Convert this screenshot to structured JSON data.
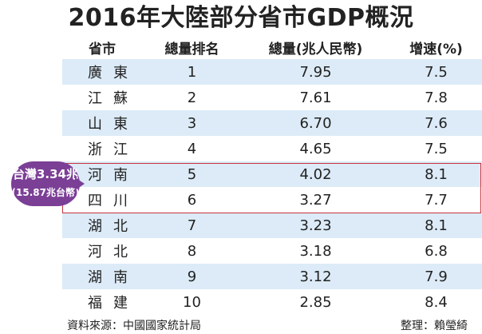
{
  "title": "2016年大陸部分省市GDP概況",
  "callout": {
    "line1": "台灣3.34兆",
    "line2": "(15.87兆台幣)",
    "color": "#7b3f96"
  },
  "highlight_color": "#c8323c",
  "row_tint": "#dcebf7",
  "footer": {
    "source": "資料來源：中國國家統計局",
    "author": "整理：賴瑩綺"
  },
  "chart_data": {
    "type": "table",
    "title": "2016年大陸部分省市GDP概況",
    "columns": [
      "省市",
      "總量排名",
      "總量(兆人民幣)",
      "增速(%)"
    ],
    "rows": [
      [
        "廣東",
        "1",
        "7.95",
        "7.5"
      ],
      [
        "江蘇",
        "2",
        "7.61",
        "7.8"
      ],
      [
        "山東",
        "3",
        "6.70",
        "7.6"
      ],
      [
        "浙江",
        "4",
        "4.65",
        "7.5"
      ],
      [
        "河南",
        "5",
        "4.02",
        "8.1"
      ],
      [
        "四川",
        "6",
        "3.27",
        "7.7"
      ],
      [
        "湖北",
        "7",
        "3.23",
        "8.1"
      ],
      [
        "河北",
        "8",
        "3.18",
        "6.8"
      ],
      [
        "湖南",
        "9",
        "3.12",
        "7.9"
      ],
      [
        "福建",
        "10",
        "2.85",
        "8.4"
      ]
    ],
    "highlighted_rows": [
      "河南",
      "四川"
    ]
  }
}
